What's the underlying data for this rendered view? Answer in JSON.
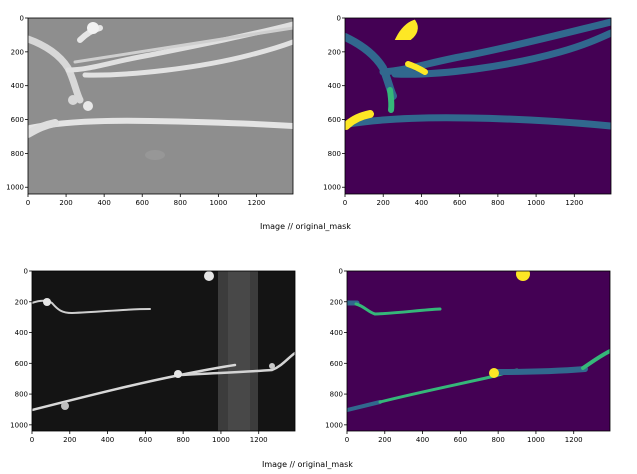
{
  "captions": [
    "Image  //  original_mask",
    "Image  //  original_mask"
  ],
  "colors": {
    "background": "#440154",
    "class_1": "#31688e",
    "class_2": "#35b779",
    "class_3": "#fde725",
    "gray_bg_top": "#8e8e8e",
    "gray_bg_bottom": "#141414",
    "tube": "#dcdcdc"
  },
  "chart_data": [
    {
      "type": "image",
      "xlim": [
        0,
        1392
      ],
      "ylim": [
        1040,
        0
      ],
      "xticks": [
        "0",
        "200",
        "400",
        "600",
        "800",
        "1000",
        "1200"
      ],
      "yticks": [
        "0",
        "200",
        "400",
        "600",
        "800",
        "1000"
      ],
      "xtick_values": [
        0,
        200,
        400,
        600,
        800,
        1000,
        1200
      ],
      "ytick_values": [
        0,
        200,
        400,
        600,
        800,
        1000
      ]
    },
    {
      "type": "heatmap",
      "xlim": [
        0,
        1392
      ],
      "ylim": [
        1040,
        0
      ],
      "xticks": [
        "0",
        "200",
        "400",
        "600",
        "800",
        "1000",
        "1200"
      ],
      "yticks": [
        "0",
        "200",
        "400",
        "600",
        "800",
        "1000"
      ],
      "xtick_values": [
        0,
        200,
        400,
        600,
        800,
        1000,
        1200
      ],
      "ytick_values": [
        0,
        200,
        400,
        600,
        800,
        1000
      ]
    },
    {
      "type": "image",
      "xlim": [
        0,
        1392
      ],
      "ylim": [
        1040,
        0
      ],
      "xticks": [
        "0",
        "200",
        "400",
        "600",
        "800",
        "1000",
        "1200"
      ],
      "yticks": [
        "0",
        "200",
        "400",
        "600",
        "800",
        "1000"
      ],
      "xtick_values": [
        0,
        200,
        400,
        600,
        800,
        1000,
        1200
      ],
      "ytick_values": [
        0,
        200,
        400,
        600,
        800,
        1000
      ]
    },
    {
      "type": "heatmap",
      "xlim": [
        0,
        1392
      ],
      "ylim": [
        1040,
        0
      ],
      "xticks": [
        "0",
        "200",
        "400",
        "600",
        "800",
        "1000",
        "1200"
      ],
      "yticks": [
        "0",
        "200",
        "400",
        "600",
        "800",
        "1000"
      ],
      "xtick_values": [
        0,
        200,
        400,
        600,
        800,
        1000,
        1200
      ],
      "ytick_values": [
        0,
        200,
        400,
        600,
        800,
        1000
      ]
    }
  ]
}
